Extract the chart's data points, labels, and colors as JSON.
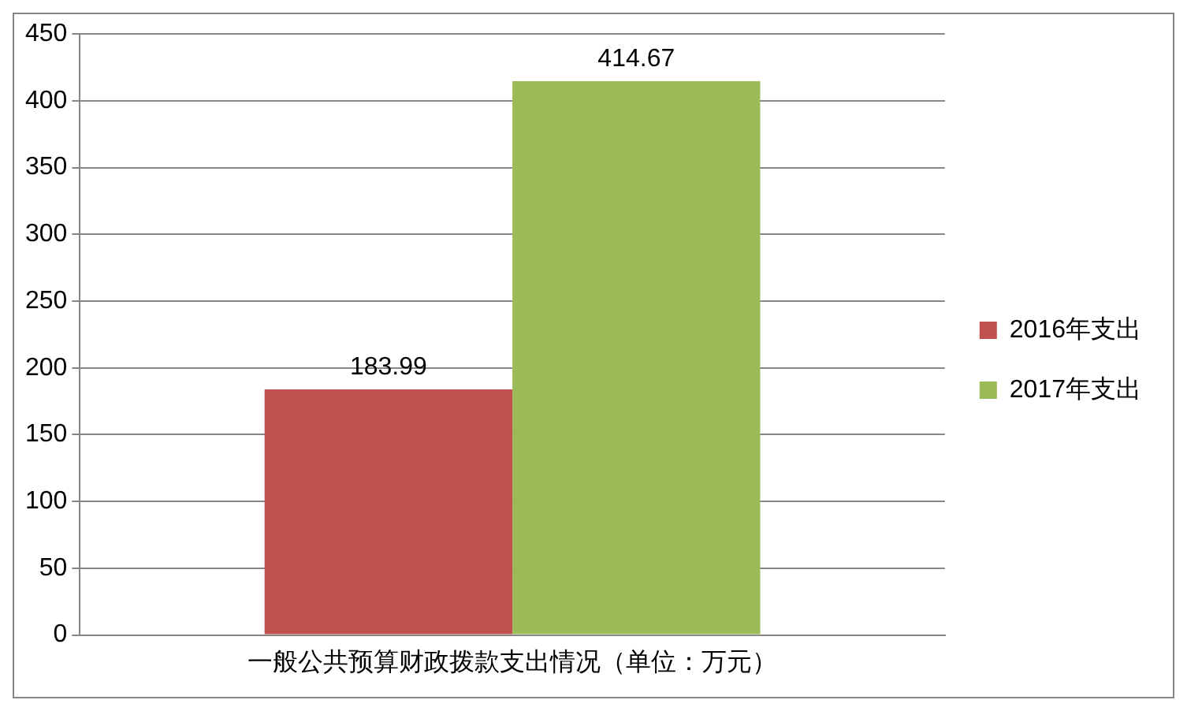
{
  "chart_data": {
    "type": "bar",
    "categories": [
      "一般公共预算财政拨款支出情况（单位：万元）"
    ],
    "series": [
      {
        "name": "2016年支出",
        "color": "#c0504d",
        "values": [
          183.99
        ]
      },
      {
        "name": "2017年支出",
        "color": "#9bbb59",
        "values": [
          414.67
        ]
      }
    ],
    "ylim": [
      0,
      450
    ],
    "yticks": [
      0,
      50,
      100,
      150,
      200,
      250,
      300,
      350,
      400,
      450
    ],
    "grid": "y",
    "legend": "right",
    "data_labels": true
  }
}
